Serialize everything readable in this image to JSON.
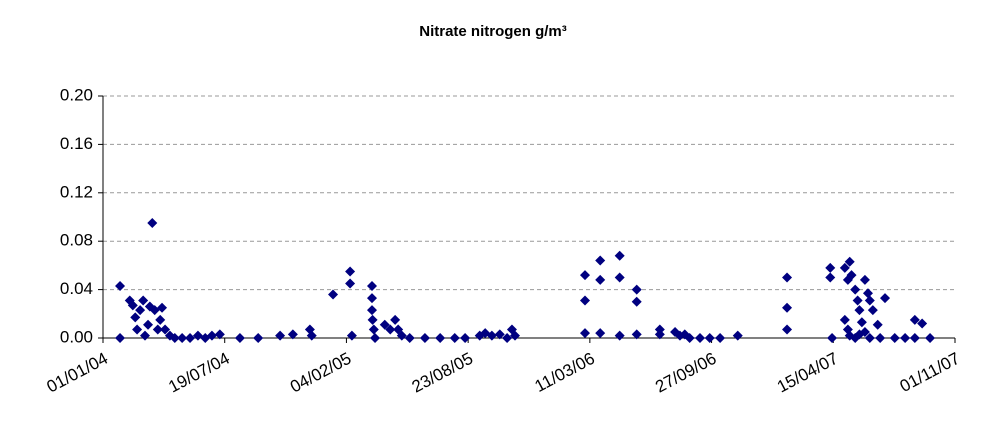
{
  "chart_data": {
    "type": "scatter",
    "title": "Nitrate nitrogen   g/m³",
    "color": "#000080",
    "grid": true,
    "xlim": [
      37987,
      39387
    ],
    "xticks": [
      {
        "value": 37987,
        "label": "01/01/04"
      },
      {
        "value": 38187,
        "label": "19/07/04"
      },
      {
        "value": 38387,
        "label": "04/02/05"
      },
      {
        "value": 38587,
        "label": "23/08/05"
      },
      {
        "value": 38787,
        "label": "11/03/06"
      },
      {
        "value": 38987,
        "label": "27/09/06"
      },
      {
        "value": 39187,
        "label": "15/04/07"
      },
      {
        "value": 39387,
        "label": "01/11/07"
      }
    ],
    "ylim": [
      0,
      0.2
    ],
    "yticks": [
      {
        "value": 0,
        "label": "0.00"
      },
      {
        "value": 0.04,
        "label": "0.04"
      },
      {
        "value": 0.08,
        "label": "0.08"
      },
      {
        "value": 0.12,
        "label": "0.12"
      },
      {
        "value": 0.16,
        "label": "0.16"
      },
      {
        "value": 0.2,
        "label": "0.20"
      }
    ],
    "x": [
      38015,
      38015,
      38031,
      38036,
      38040,
      38043,
      38048,
      38053,
      38056,
      38061,
      38064,
      38068,
      38072,
      38077,
      38081,
      38084,
      38089,
      38097,
      38105,
      38117,
      38130,
      38143,
      38155,
      38166,
      38179,
      38212,
      38242,
      38278,
      38299,
      38327,
      38330,
      38365,
      38393,
      38393,
      38396,
      38429,
      38429,
      38429,
      38430,
      38432,
      38434,
      38450,
      38459,
      38467,
      38472,
      38478,
      38491,
      38516,
      38541,
      38565,
      38582,
      38606,
      38615,
      38626,
      38639,
      38651,
      38659,
      38664,
      38779,
      38779,
      38779,
      38804,
      38804,
      38804,
      38836,
      38836,
      38836,
      38864,
      38864,
      38864,
      38902,
      38902,
      38927,
      38935,
      38943,
      38951,
      38968,
      38984,
      39001,
      39030,
      39111,
      39111,
      39111,
      39182,
      39182,
      39185,
      39206,
      39211,
      39214,
      39217,
      39223,
      39227,
      39230,
      39234,
      39239,
      39244,
      39247,
      39252,
      39206,
      39211,
      39214,
      39223,
      39230,
      39239,
      39247,
      39260,
      39264,
      39272,
      39288,
      39305,
      39321,
      39333,
      39321,
      39346
    ],
    "values": [
      0.043,
      0,
      0.031,
      0.027,
      0.017,
      0.007,
      0.023,
      0.031,
      0.002,
      0.011,
      0.026,
      0.095,
      0.023,
      0.007,
      0.015,
      0.025,
      0.007,
      0.002,
      0,
      0,
      0,
      0.002,
      0,
      0.002,
      0.003,
      0,
      0,
      0.002,
      0.003,
      0.007,
      0.002,
      0.036,
      0.055,
      0.045,
      0.002,
      0.043,
      0.033,
      0.023,
      0.015,
      0.007,
      0,
      0.011,
      0.007,
      0.015,
      0.007,
      0.002,
      0,
      0,
      0,
      0,
      0,
      0.002,
      0.004,
      0.002,
      0.003,
      0,
      0.007,
      0.002,
      0.052,
      0.031,
      0.004,
      0.064,
      0.048,
      0.004,
      0.068,
      0.05,
      0.002,
      0.04,
      0.03,
      0.003,
      0.007,
      0.003,
      0.005,
      0.002,
      0.003,
      0,
      0,
      0,
      0,
      0.002,
      0.05,
      0.025,
      0.007,
      0.058,
      0.05,
      0,
      0.058,
      0.048,
      0.063,
      0.052,
      0.04,
      0.031,
      0.023,
      0.013,
      0.048,
      0.037,
      0.031,
      0.023,
      0.015,
      0.007,
      0.002,
      0,
      0.003,
      0.005,
      0,
      0.011,
      0,
      0.033,
      0,
      0,
      0.015,
      0.012,
      0,
      0
    ]
  }
}
